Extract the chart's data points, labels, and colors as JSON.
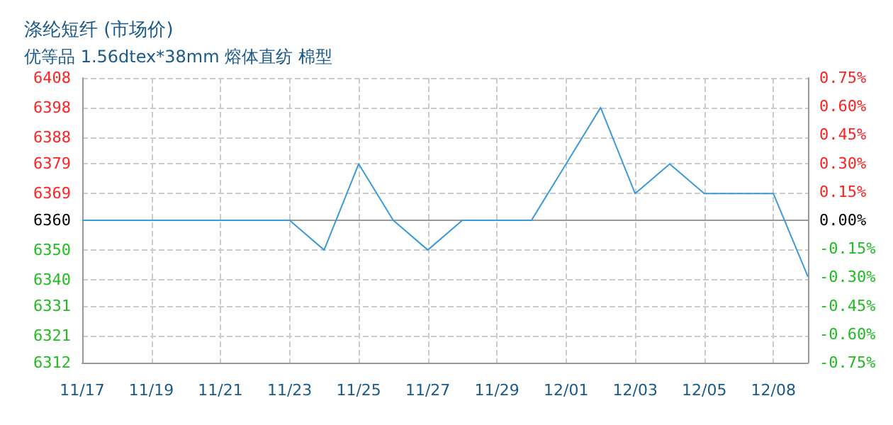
{
  "chart_data": {
    "type": "line",
    "title": "涤纶短纤 (市场价)",
    "subtitle": "优等品 1.56dtex*38mm 熔体直纺 棉型",
    "categories": [
      "11/17",
      null,
      "11/19",
      null,
      "11/21",
      null,
      "11/23",
      null,
      "11/25",
      null,
      "11/27",
      null,
      "11/29",
      null,
      "12/01",
      null,
      "12/03",
      null,
      "12/05",
      null,
      "12/08",
      null
    ],
    "series": [
      {
        "color": "#3d9ad8",
        "values": [
          6360,
          6360,
          6360,
          6360,
          6360,
          6360,
          6360,
          6350,
          6379,
          6360,
          6350,
          6360,
          6360,
          6360,
          6379,
          6398,
          6369,
          6379,
          6369,
          6369,
          6369,
          6341
        ]
      }
    ],
    "ylim": [
      6312,
      6408
    ],
    "yticks": [
      {
        "value": 6312,
        "label": "6312"
      },
      {
        "value": 6321,
        "label": "6321"
      },
      {
        "value": 6331,
        "label": "6331"
      },
      {
        "value": 6340,
        "label": "6340"
      },
      {
        "value": 6350,
        "label": "6350"
      },
      {
        "value": 6360,
        "label": "6360"
      },
      {
        "value": 6369,
        "label": "6369"
      },
      {
        "value": 6379,
        "label": "6379"
      },
      {
        "value": 6388,
        "label": "6388"
      },
      {
        "value": 6398,
        "label": "6398"
      },
      {
        "value": 6408,
        "label": "6408"
      }
    ],
    "y2lim": [
      -0.75,
      0.75
    ],
    "y2ticks": [
      {
        "value": -0.75,
        "label": "-0.75%"
      },
      {
        "value": -0.6,
        "label": "-0.60%"
      },
      {
        "value": -0.45,
        "label": "-0.45%"
      },
      {
        "value": -0.3,
        "label": "-0.30%"
      },
      {
        "value": -0.15,
        "label": "-0.15%"
      },
      {
        "value": 0,
        "label": "0.00%"
      },
      {
        "value": 0.15,
        "label": "0.15%"
      },
      {
        "value": 0.3,
        "label": "0.30%"
      },
      {
        "value": 0.45,
        "label": "0.45%"
      },
      {
        "value": 0.6,
        "label": "0.60%"
      },
      {
        "value": 0.75,
        "label": "0.75%"
      }
    ],
    "ref_lines": [
      {
        "axis": "y",
        "value": 6360,
        "color": "#999999"
      }
    ],
    "grid": true,
    "marker": "none",
    "line_style": "solid"
  }
}
